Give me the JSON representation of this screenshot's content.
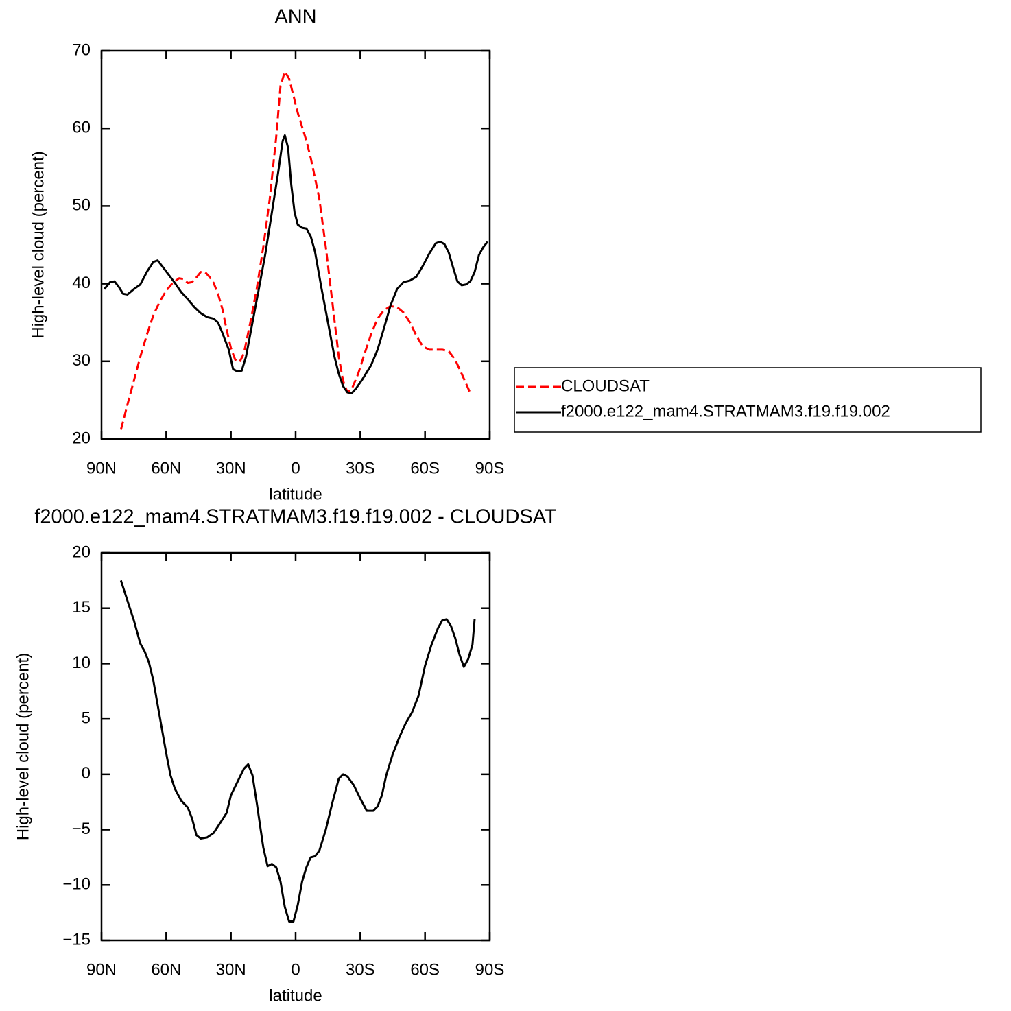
{
  "chart_data": [
    {
      "type": "line",
      "title": "ANN",
      "xlabel": "latitude",
      "ylabel": "High-level cloud (percent)",
      "xlim": [
        90,
        -90
      ],
      "xticks": [
        {
          "value": 90,
          "label": "90N"
        },
        {
          "value": 60,
          "label": "60N"
        },
        {
          "value": 30,
          "label": "30N"
        },
        0,
        {
          "value": -30,
          "label": "30S"
        },
        {
          "value": -60,
          "label": "60S"
        },
        {
          "value": -90,
          "label": "90S"
        }
      ],
      "ylim": [
        20,
        70
      ],
      "yticks": [
        20,
        30,
        40,
        50,
        60,
        70
      ],
      "legend": "right",
      "series": [
        {
          "name": "CLOUDSAT",
          "color": "#ff0000",
          "line_style": "dashed",
          "x": [
            81,
            78,
            75,
            72,
            69,
            66,
            63,
            60,
            57,
            54,
            52,
            50,
            48,
            46,
            44,
            42,
            40,
            38,
            36,
            34,
            32,
            30,
            28,
            26,
            24,
            21,
            18,
            15,
            12,
            9,
            7,
            5,
            3,
            1,
            -1,
            -3,
            -5,
            -7,
            -9,
            -11,
            -14,
            -17,
            -20,
            -22,
            -24,
            -26,
            -29,
            -32,
            -35,
            -38,
            -41,
            -44,
            -47,
            -50,
            -53,
            -56,
            -59,
            -62,
            -65,
            -68,
            -71,
            -74,
            -77,
            -81
          ],
          "values": [
            21.2,
            24.4,
            27.5,
            30.6,
            33.4,
            35.9,
            37.7,
            39.1,
            40.1,
            40.7,
            40.6,
            40.1,
            40.2,
            40.8,
            41.5,
            41.5,
            40.9,
            40.1,
            38.7,
            36.8,
            34.1,
            31.7,
            30.2,
            29.9,
            31.0,
            35.0,
            39.4,
            44.7,
            50.9,
            58.9,
            65.5,
            67.3,
            66.4,
            64.2,
            62.0,
            60.2,
            58.4,
            56.2,
            53.6,
            50.9,
            44.7,
            37.7,
            30.6,
            27.5,
            26.0,
            26.4,
            28.4,
            31.0,
            33.5,
            35.5,
            36.6,
            37.1,
            37.0,
            36.3,
            35.0,
            33.3,
            31.9,
            31.5,
            31.5,
            31.5,
            31.3,
            30.2,
            28.4,
            25.9
          ]
        },
        {
          "name": "f2000.e122_mam4.STRATMAM3.f19.f19.002",
          "color": "#000000",
          "line_style": "solid",
          "x": [
            88.7,
            86,
            84,
            82,
            80,
            78,
            75,
            72,
            69,
            66,
            64,
            62,
            59,
            56,
            53,
            50,
            47,
            44,
            41,
            38,
            36,
            34,
            31,
            29,
            27,
            25,
            23,
            20,
            17,
            14,
            11,
            8,
            6,
            5,
            3.5,
            2,
            0.5,
            -1,
            -3,
            -5,
            -7,
            -9,
            -12,
            -15,
            -18,
            -20,
            -22,
            -24,
            -26,
            -28,
            -31,
            -35,
            -38,
            -41,
            -44,
            -47,
            -50,
            -53,
            -56,
            -59,
            -62,
            -65,
            -67,
            -69,
            -71,
            -73,
            -75,
            -77,
            -79,
            -81,
            -83,
            -85,
            -87,
            -89
          ],
          "values": [
            39.3,
            40.2,
            40.3,
            39.6,
            38.7,
            38.6,
            39.3,
            39.9,
            41.5,
            42.8,
            43.0,
            42.3,
            41.2,
            40.1,
            38.9,
            38.0,
            37.0,
            36.2,
            35.7,
            35.5,
            35.0,
            33.7,
            31.5,
            29.0,
            28.7,
            28.8,
            30.6,
            35.0,
            39.4,
            43.9,
            49.2,
            54.5,
            58.4,
            59.1,
            57.5,
            52.7,
            49.2,
            47.6,
            47.2,
            47.1,
            46.1,
            44.1,
            39.4,
            35.0,
            30.6,
            28.4,
            26.8,
            26.0,
            25.9,
            26.5,
            27.7,
            29.5,
            31.5,
            34.3,
            37.2,
            39.3,
            40.2,
            40.4,
            40.9,
            42.3,
            43.9,
            45.2,
            45.4,
            45.1,
            44.0,
            42.1,
            40.3,
            39.8,
            39.9,
            40.3,
            41.5,
            43.7,
            44.7,
            45.4
          ]
        }
      ]
    },
    {
      "type": "line",
      "title": "f2000.e122_mam4.STRATMAM3.f19.f19.002 - CLOUDSAT",
      "xlabel": "latitude",
      "ylabel": "High-level cloud (percent)",
      "xlim": [
        90,
        -90
      ],
      "xticks": [
        {
          "value": 90,
          "label": "90N"
        },
        {
          "value": 60,
          "label": "60N"
        },
        {
          "value": 30,
          "label": "30N"
        },
        0,
        {
          "value": -30,
          "label": "30S"
        },
        {
          "value": -60,
          "label": "60S"
        },
        {
          "value": -90,
          "label": "90S"
        }
      ],
      "ylim": [
        -15,
        20
      ],
      "yticks": [
        {
          "value": -15,
          "label": "−15"
        },
        {
          "value": -10,
          "label": "−10"
        },
        {
          "value": -5,
          "label": "−5"
        },
        0,
        5,
        10,
        15,
        20
      ],
      "series": [
        {
          "color": "#000000",
          "line_style": "solid",
          "x": [
            81,
            78,
            75,
            72,
            70,
            68,
            66,
            63,
            60,
            58,
            56,
            53,
            50,
            48,
            46,
            44,
            41,
            38,
            35,
            32,
            30,
            27,
            24,
            22,
            20,
            18,
            15,
            13,
            11,
            9,
            7,
            5,
            3,
            1,
            -1,
            -3,
            -5,
            -7,
            -9,
            -11,
            -14,
            -17,
            -20,
            -22,
            -24,
            -27,
            -30,
            -33,
            -36,
            -38,
            -40,
            -42,
            -45,
            -48,
            -51,
            -54,
            -57,
            -60,
            -63,
            -66,
            -68,
            -70,
            -72,
            -74,
            -76,
            -78,
            -80,
            -82,
            -83
          ],
          "values": [
            17.5,
            15.7,
            13.9,
            11.8,
            11.1,
            10.1,
            8.5,
            5.2,
            1.9,
            -0.1,
            -1.3,
            -2.4,
            -3.0,
            -4.0,
            -5.5,
            -5.8,
            -5.7,
            -5.3,
            -4.4,
            -3.5,
            -1.9,
            -0.7,
            0.5,
            0.9,
            -0.1,
            -2.6,
            -6.6,
            -8.3,
            -8.1,
            -8.4,
            -9.7,
            -12.0,
            -13.3,
            -13.3,
            -11.8,
            -9.7,
            -8.4,
            -7.5,
            -7.4,
            -6.9,
            -5.0,
            -2.6,
            -0.4,
            0.0,
            -0.2,
            -1.0,
            -2.2,
            -3.3,
            -3.3,
            -2.9,
            -1.9,
            -0.1,
            1.8,
            3.3,
            4.6,
            5.6,
            7.1,
            9.8,
            11.7,
            13.2,
            13.9,
            14.0,
            13.4,
            12.3,
            10.8,
            9.7,
            10.4,
            11.7,
            14.0
          ]
        }
      ]
    }
  ]
}
